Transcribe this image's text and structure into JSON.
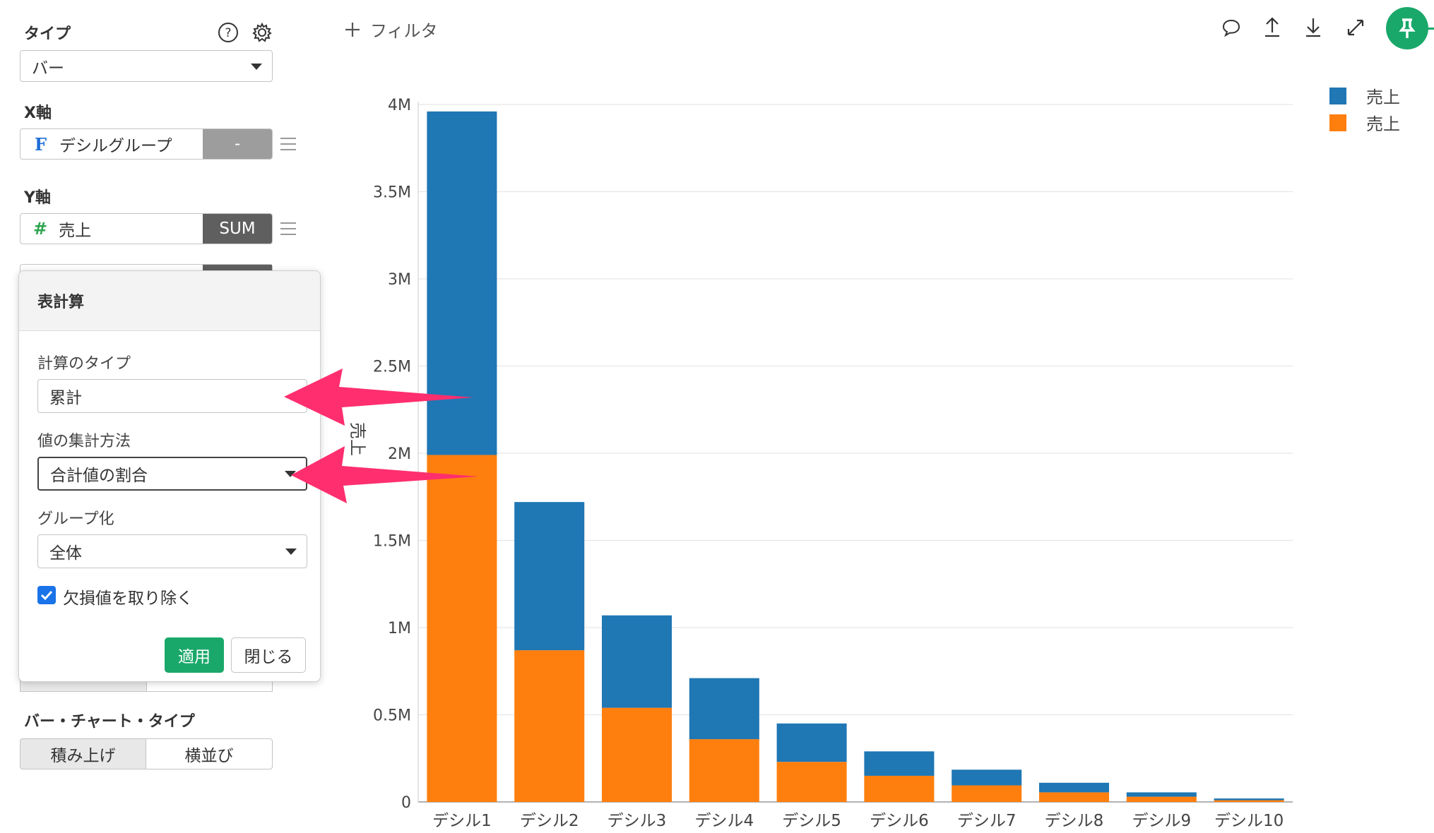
{
  "sidebar": {
    "type_label": "タイプ",
    "type_value": "バー",
    "x_axis_label": "X軸",
    "x_field": {
      "icon": "F",
      "name": "デシルグループ",
      "agg": "-"
    },
    "y_axis_label": "Y軸",
    "y_field": {
      "icon": "#",
      "name": "売上",
      "agg": "SUM"
    },
    "bar_chart_type_label": "バー・チャート・タイプ",
    "bar_type_options": [
      "積み上げ",
      "横並び"
    ],
    "bar_type_selected": "積み上げ"
  },
  "panel": {
    "title": "表計算",
    "calc_type_label": "計算のタイプ",
    "calc_type_value": "累計",
    "agg_method_label": "値の集計方法",
    "agg_method_value": "合計値の割合",
    "grouping_label": "グループ化",
    "grouping_value": "全体",
    "remove_missing_label": "欠損値を取り除く",
    "remove_missing_checked": true,
    "apply_label": "適用",
    "close_label": "閉じる"
  },
  "toolbar": {
    "filter_label": "フィルタ"
  },
  "colors": {
    "accent_green": "#1aa86a",
    "series_blue": "#1f77b4",
    "series_orange": "#ff7f0e",
    "arrow_pink": "#ff2e6e"
  },
  "chart_data": {
    "type": "bar",
    "stacked": true,
    "categories": [
      "デシル1",
      "デシル2",
      "デシル3",
      "デシル4",
      "デシル5",
      "デシル6",
      "デシル7",
      "デシル8",
      "デシル9",
      "デシル10"
    ],
    "series": [
      {
        "name": "売上",
        "color": "#ff7f0e",
        "values": [
          1990000,
          870000,
          540000,
          360000,
          230000,
          150000,
          95000,
          55000,
          30000,
          10000
        ]
      },
      {
        "name": "売上",
        "color": "#1f77b4",
        "values": [
          1970000,
          850000,
          530000,
          350000,
          220000,
          140000,
          90000,
          55000,
          25000,
          10000
        ]
      }
    ],
    "ylabel": "売上",
    "ylim": [
      0,
      4000000
    ],
    "yticks": [
      0,
      500000,
      1000000,
      1500000,
      2000000,
      2500000,
      3000000,
      3500000,
      4000000
    ],
    "ytick_labels": [
      "0",
      "0.5M",
      "1M",
      "1.5M",
      "2M",
      "2.5M",
      "3M",
      "3.5M",
      "4M"
    ],
    "grid": true,
    "legend": "top-right"
  }
}
